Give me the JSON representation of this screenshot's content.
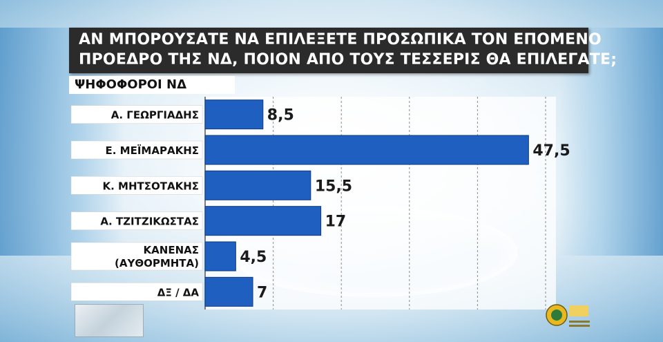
{
  "chart_data": {
    "type": "bar",
    "orientation": "horizontal",
    "title": "ΑΝ ΜΠΟΡΟΥΣΑΤΕ ΝΑ ΕΠΙΛΕΞΕΤΕ ΠΡΟΣΩΠΙΚΑ ΤΟΝ ΕΠΟΜΕΝΟ ΠΡΟΕΔΡΟ ΤΗΣ ΝΔ, ΠΟΙΟΝ ΑΠΟ ΤΟΥΣ ΤΕΣΣΕΡΙΣ ΘΑ ΕΠΙΛΕΓΑΤΕ;",
    "title_lines": [
      "ΑΝ ΜΠΟΡΟΥΣΑΤΕ ΝΑ ΕΠΙΛΕΞΕΤΕ ΠΡΟΣΩΠΙΚΑ ΤΟΝ ΕΠΟΜΕΝΟ",
      "ΠΡΟΕΔΡΟ ΤΗΣ ΝΔ, ΠΟΙΟΝ ΑΠΟ ΤΟΥΣ ΤΕΣΣΕΡΙΣ ΘΑ ΕΠΙΛΕΓΑΤΕ;"
    ],
    "subtitle": "ΨΗΦΟΦΟΡΟΙ ΝΔ",
    "categories": [
      [
        "Α. ΓΕΩΡΓΙΑΔΗΣ"
      ],
      [
        "Ε. ΜΕΪΜΑΡΑΚΗΣ"
      ],
      [
        "Κ. ΜΗΤΣΟΤΑΚΗΣ"
      ],
      [
        "Α. ΤΖΙΤΖΙΚΩΣΤΑΣ"
      ],
      [
        "ΚΑΝΕΝΑΣ",
        "(ΑΥΘΟΡΜΗΤΑ)"
      ],
      [
        "ΔΞ / ΔΑ"
      ]
    ],
    "values": [
      8.5,
      47.5,
      15.5,
      17,
      4.5,
      7
    ],
    "value_labels": [
      "8,5",
      "47,5",
      "15,5",
      "17",
      "4,5",
      "7"
    ],
    "xlim": [
      0,
      50
    ],
    "grid": true,
    "legend": "none",
    "bar_color": "#1f5fbf"
  }
}
